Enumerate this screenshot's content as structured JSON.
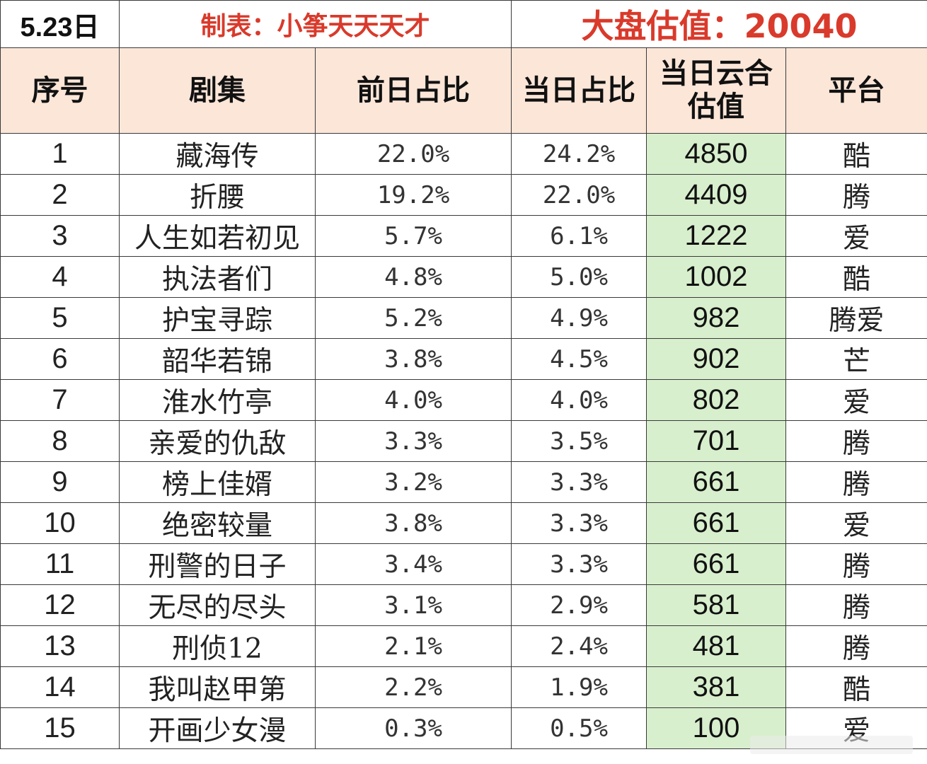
{
  "header": {
    "date": "5.23日",
    "maker": "制表：小筝天天天才",
    "total": "大盘估值：20040"
  },
  "columns": [
    "序号",
    "剧集",
    "前日占比",
    "当日占比",
    "当日云合估值",
    "平台"
  ],
  "rows": [
    {
      "rank": "1",
      "title": "藏海传",
      "prev_share": "22.0%",
      "today_share": "24.2%",
      "value": "4850",
      "platform": "酷"
    },
    {
      "rank": "2",
      "title": "折腰",
      "prev_share": "19.2%",
      "today_share": "22.0%",
      "value": "4409",
      "platform": "腾"
    },
    {
      "rank": "3",
      "title": "人生如若初见",
      "prev_share": "5.7%",
      "today_share": "6.1%",
      "value": "1222",
      "platform": "爱"
    },
    {
      "rank": "4",
      "title": "执法者们",
      "prev_share": "4.8%",
      "today_share": "5.0%",
      "value": "1002",
      "platform": "酷"
    },
    {
      "rank": "5",
      "title": "护宝寻踪",
      "prev_share": "5.2%",
      "today_share": "4.9%",
      "value": "982",
      "platform": "腾爱"
    },
    {
      "rank": "6",
      "title": "韶华若锦",
      "prev_share": "3.8%",
      "today_share": "4.5%",
      "value": "902",
      "platform": "芒"
    },
    {
      "rank": "7",
      "title": "淮水竹亭",
      "prev_share": "4.0%",
      "today_share": "4.0%",
      "value": "802",
      "platform": "爱"
    },
    {
      "rank": "8",
      "title": "亲爱的仇敌",
      "prev_share": "3.3%",
      "today_share": "3.5%",
      "value": "701",
      "platform": "腾"
    },
    {
      "rank": "9",
      "title": "榜上佳婿",
      "prev_share": "3.2%",
      "today_share": "3.3%",
      "value": "661",
      "platform": "腾"
    },
    {
      "rank": "10",
      "title": "绝密较量",
      "prev_share": "3.8%",
      "today_share": "3.3%",
      "value": "661",
      "platform": "爱"
    },
    {
      "rank": "11",
      "title": "刑警的日子",
      "prev_share": "3.4%",
      "today_share": "3.3%",
      "value": "661",
      "platform": "腾"
    },
    {
      "rank": "12",
      "title": "无尽的尽头",
      "prev_share": "3.1%",
      "today_share": "2.9%",
      "value": "581",
      "platform": "腾"
    },
    {
      "rank": "13",
      "title": "刑侦12",
      "prev_share": "2.1%",
      "today_share": "2.4%",
      "value": "481",
      "platform": "腾"
    },
    {
      "rank": "14",
      "title": "我叫赵甲第",
      "prev_share": "2.2%",
      "today_share": "1.9%",
      "value": "381",
      "platform": "酷"
    },
    {
      "rank": "15",
      "title": "开画少女漫",
      "prev_share": "0.3%",
      "today_share": "0.5%",
      "value": "100",
      "platform": "爱"
    }
  ],
  "colors": {
    "title_red": "#d93a2b",
    "header_fill": "#fbe6d8",
    "value_fill": "#d8efcd",
    "grid": "#3a3a3a"
  }
}
